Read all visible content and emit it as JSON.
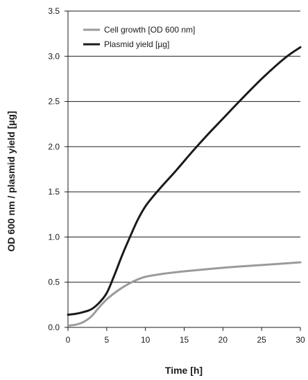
{
  "chart_data": {
    "type": "line",
    "xlabel": "Time [h]",
    "ylabel": "OD 600 nm / plasmid yield [µg]",
    "xlim": [
      0,
      30
    ],
    "ylim": [
      0,
      3.5
    ],
    "x_ticks": [
      "0",
      "5",
      "10",
      "15",
      "20",
      "25",
      "30"
    ],
    "y_ticks": [
      "0.0",
      "0.5",
      "1.0",
      "1.5",
      "2.0",
      "2.5",
      "3.0",
      "3.5"
    ],
    "grid": "horizontal",
    "legend_position": "top-left",
    "series": [
      {
        "name": "Cell growth [OD 600 nm]",
        "color": "#9a9a9a",
        "x": [
          0,
          1,
          2,
          3,
          4,
          5,
          6,
          7,
          8,
          9,
          10,
          12,
          15,
          20,
          25,
          30
        ],
        "y": [
          0.02,
          0.03,
          0.06,
          0.12,
          0.22,
          0.31,
          0.38,
          0.44,
          0.49,
          0.53,
          0.56,
          0.59,
          0.62,
          0.66,
          0.69,
          0.72
        ]
      },
      {
        "name": "Plasmid yield [µg]",
        "color": "#1a1a1a",
        "x": [
          0,
          1,
          2,
          3,
          4,
          5,
          6,
          7,
          8,
          9,
          10,
          11,
          12,
          14,
          16,
          18,
          20,
          22,
          25,
          28,
          30
        ],
        "y": [
          0.14,
          0.15,
          0.17,
          0.2,
          0.27,
          0.38,
          0.58,
          0.8,
          1.0,
          1.19,
          1.34,
          1.45,
          1.55,
          1.74,
          1.94,
          2.13,
          2.31,
          2.49,
          2.75,
          2.98,
          3.1
        ]
      }
    ]
  }
}
